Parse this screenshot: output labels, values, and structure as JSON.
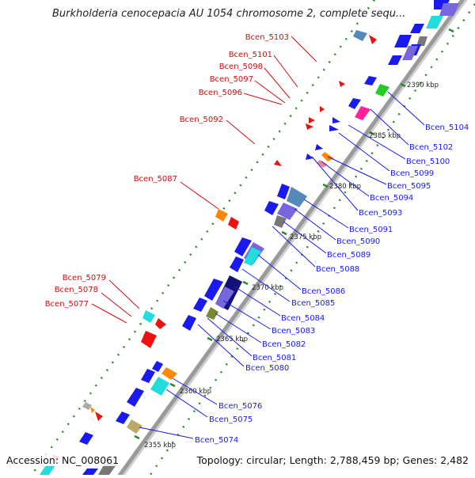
{
  "header": {
    "title": "Burkholderia cenocepacia AU 1054 chromosome 2, complete sequ..."
  },
  "footer": {
    "accession": "Accession: NC_008061",
    "summary": "Topology: circular; Length: 2,788,459 bp; Genes: 2,482"
  },
  "kbp_ticks": [
    "2355 kbp",
    "2360 kbp",
    "2365 kbp",
    "2370 kbp",
    "2375 kbp",
    "2380 kbp",
    "2385 kbp",
    "2390 kbp"
  ],
  "genes": {
    "left": [
      "Bcen_5103",
      "Bcen_5101",
      "Bcen_5098",
      "Bcen_5097",
      "Bcen_5096",
      "Bcen_5092",
      "Bcen_5087",
      "Bcen_5079",
      "Bcen_5078",
      "Bcen_5077"
    ],
    "right": [
      "Bcen_5104",
      "Bcen_5102",
      "Bcen_5100",
      "Bcen_5099",
      "Bcen_5095",
      "Bcen_5094",
      "Bcen_5093",
      "Bcen_5091",
      "Bcen_5090",
      "Bcen_5089",
      "Bcen_5088",
      "Bcen_5086",
      "Bcen_5085",
      "Bcen_5084",
      "Bcen_5083",
      "Bcen_5082",
      "Bcen_5081",
      "Bcen_5080",
      "Bcen_5076",
      "Bcen_5075",
      "Bcen_5074"
    ]
  },
  "colors": {
    "backbone": "#999999",
    "forward_gene": "#1a1aee",
    "reverse_gene": "#ee1111",
    "right_label": "#1a1aee",
    "left_label": "#cc1111",
    "tick": "#2a8a2a",
    "cyan": "#22dddd",
    "steel_blue": "#5588bb",
    "lavender": "#7766dd",
    "navy": "#111177",
    "olive": "#778833",
    "khaki": "#bbaa66",
    "orange": "#ff8800",
    "magenta": "#ff2299",
    "green": "#22cc22",
    "pink": "#ee8888",
    "gray": "#777777"
  }
}
